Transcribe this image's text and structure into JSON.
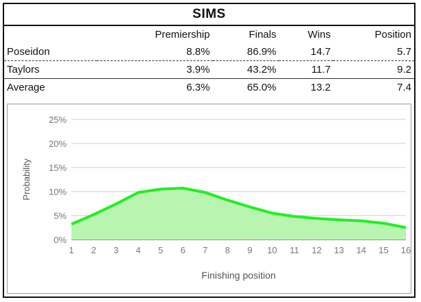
{
  "title": "SIMS",
  "table": {
    "columns": [
      "",
      "Premiership",
      "Finals",
      "Wins",
      "Position"
    ],
    "rows": [
      {
        "team": "Poseidon",
        "premiership": "8.8%",
        "finals": "86.9%",
        "wins": "14.7",
        "position": "5.7"
      },
      {
        "team": "Taylors",
        "premiership": "3.9%",
        "finals": "43.2%",
        "wins": "11.7",
        "position": "9.2"
      },
      {
        "team": "Average",
        "premiership": "6.3%",
        "finals": "65.0%",
        "wins": "13.2",
        "position": "7.4"
      }
    ]
  },
  "chart_data": {
    "type": "area",
    "title": "",
    "xlabel": "Finishing position",
    "ylabel": "Probability",
    "x": [
      1,
      2,
      3,
      4,
      5,
      6,
      7,
      8,
      9,
      10,
      11,
      12,
      13,
      14,
      15,
      16
    ],
    "x_tick_labels": [
      "1",
      "2",
      "3",
      "4",
      "5",
      "6",
      "7",
      "8",
      "9",
      "10",
      "11",
      "12",
      "13",
      "14",
      "15",
      "16"
    ],
    "y_tick_values": [
      0,
      5,
      10,
      15,
      20,
      25
    ],
    "y_tick_labels": [
      "0%",
      "5%",
      "10%",
      "15%",
      "20%",
      "25%"
    ],
    "ylim": [
      0,
      25
    ],
    "grid": true,
    "series": [
      {
        "values": [
          3.2,
          5.2,
          7.4,
          9.8,
          10.5,
          10.7,
          9.8,
          8.2,
          6.8,
          5.5,
          4.8,
          4.4,
          4.1,
          3.9,
          3.4,
          2.5
        ]
      }
    ],
    "line_color": "#22ee22",
    "fill_color": "#b8f5b0"
  }
}
